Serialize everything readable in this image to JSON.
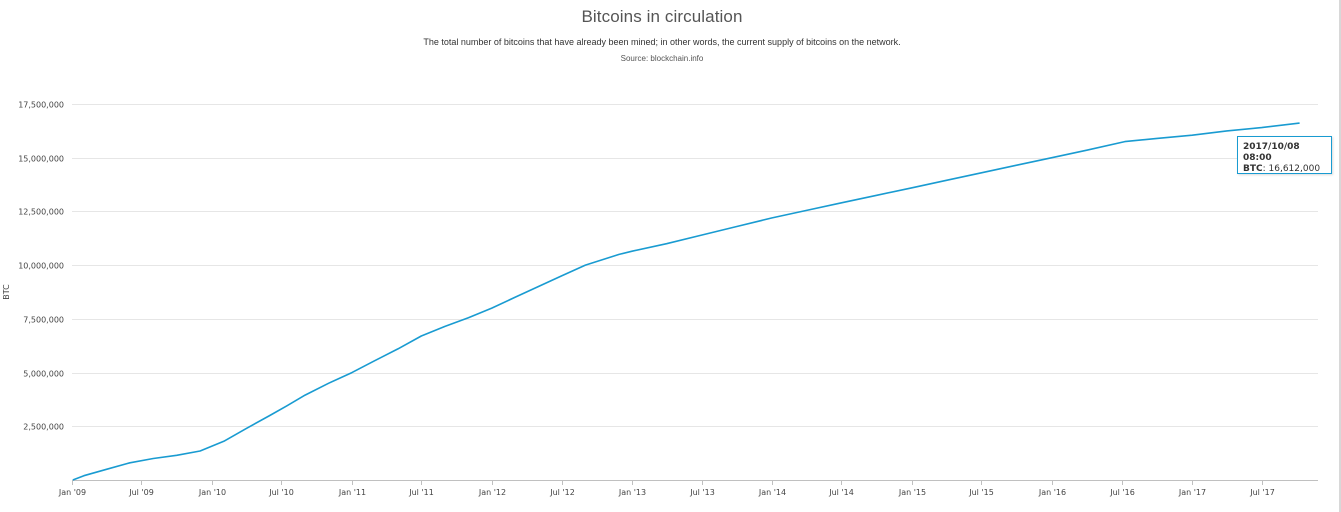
{
  "page": {
    "title": "Bitcoins in circulation",
    "subtitle": "The total number of bitcoins that have already been mined; in other words, the current supply of bitcoins on the network.",
    "source": "Source: blockchain.info"
  },
  "tooltip": {
    "date": "2017/10/08 08:00",
    "key": "BTC",
    "value": "16,612,000"
  },
  "colors": {
    "line": "#199bd1",
    "grid": "#e6e6e6",
    "axis": "#c0c0c0"
  },
  "chart_data": {
    "type": "line",
    "title": "Bitcoins in circulation",
    "subtitle": "The total number of bitcoins that have already been mined; in other words, the current supply of bitcoins on the network.",
    "ylabel": "BTC",
    "xlabel": "",
    "ylim": [
      0,
      17500000
    ],
    "xlim": [
      "2009-01-01",
      "2017-11-25"
    ],
    "y_ticks": [
      2500000,
      5000000,
      7500000,
      10000000,
      12500000,
      15000000,
      17500000
    ],
    "y_tick_labels": [
      "2,500,000",
      "5,000,000",
      "7,500,000",
      "10,000,000",
      "12,500,000",
      "15,000,000",
      "17,500,000"
    ],
    "x_ticks": [
      "2009-01-01",
      "2009-07-01",
      "2010-01-01",
      "2010-07-01",
      "2011-01-01",
      "2011-07-01",
      "2012-01-01",
      "2012-07-01",
      "2013-01-01",
      "2013-07-01",
      "2014-01-01",
      "2014-07-01",
      "2015-01-01",
      "2015-07-01",
      "2016-01-01",
      "2016-07-01",
      "2017-01-01",
      "2017-07-01"
    ],
    "x_tick_labels": [
      "Jan '09",
      "Jul '09",
      "Jan '10",
      "Jul '10",
      "Jan '11",
      "Jul '11",
      "Jan '12",
      "Jul '12",
      "Jan '13",
      "Jul '13",
      "Jan '14",
      "Jul '14",
      "Jan '15",
      "Jul '15",
      "Jan '16",
      "Jul '16",
      "Jan '17",
      "Jul '17"
    ],
    "grid": true,
    "legend": "none",
    "series": [
      {
        "x": [
          "2009-01-03",
          "2009-02-01",
          "2009-04-01",
          "2009-06-01",
          "2009-08-01",
          "2009-10-01",
          "2009-12-01",
          "2010-02-01",
          "2010-04-01",
          "2010-06-01",
          "2010-07-15",
          "2010-09-01",
          "2010-11-01",
          "2011-01-01",
          "2011-03-01",
          "2011-05-01",
          "2011-07-01",
          "2011-09-01",
          "2011-11-01",
          "2012-01-01",
          "2012-03-01",
          "2012-05-01",
          "2012-07-01",
          "2012-09-01",
          "2012-11-28",
          "2013-01-01",
          "2013-04-01",
          "2013-07-01",
          "2013-10-01",
          "2014-01-01",
          "2014-04-01",
          "2014-07-01",
          "2014-10-01",
          "2015-01-01",
          "2015-04-01",
          "2015-07-01",
          "2015-10-01",
          "2016-01-01",
          "2016-04-01",
          "2016-07-09",
          "2016-10-01",
          "2017-01-01",
          "2017-04-01",
          "2017-07-01",
          "2017-10-08"
        ],
        "y": [
          50,
          200000,
          500000,
          800000,
          1000000,
          1150000,
          1350000,
          1800000,
          2400000,
          3000000,
          3450000,
          3950000,
          4500000,
          5000000,
          5550000,
          6100000,
          6700000,
          7150000,
          7550000,
          8000000,
          8500000,
          9000000,
          9500000,
          10000000,
          10500000,
          10650000,
          11000000,
          11400000,
          11800000,
          12200000,
          12550000,
          12900000,
          13250000,
          13600000,
          13950000,
          14300000,
          14650000,
          15000000,
          15350000,
          15750000,
          15900000,
          16050000,
          16250000,
          16400000,
          16612000
        ]
      }
    ]
  }
}
